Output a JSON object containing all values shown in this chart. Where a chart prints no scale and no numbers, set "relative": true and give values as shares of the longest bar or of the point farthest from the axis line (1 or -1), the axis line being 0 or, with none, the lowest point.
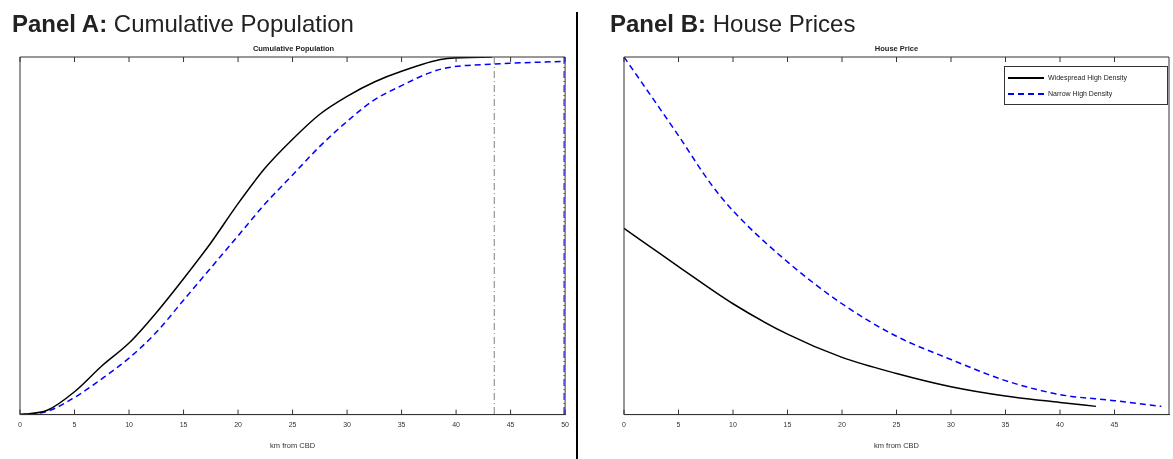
{
  "chart_data": [
    {
      "type": "line",
      "title": "Panel A: Cumulative Population",
      "subtitle": "Cumulative Population",
      "xlabel": "km from CBD",
      "relative": true,
      "xlim": [
        0,
        50
      ],
      "xticks": [
        0,
        5,
        10,
        15,
        20,
        25,
        30,
        35,
        40,
        45,
        50
      ],
      "tick_labels": "x",
      "grid": false,
      "legend": false,
      "marker": "none",
      "ref_lines": [
        {
          "axis": "x",
          "value": 43.5,
          "color": "#808080",
          "line_style": "dashed"
        },
        {
          "axis": "x",
          "value": 49.9,
          "color": "#0000ff",
          "line_style": "dashed"
        }
      ],
      "series": [
        {
          "color": "#000000",
          "line_style": "solid",
          "x": [
            0,
            2.5,
            5,
            7.5,
            10,
            12.5,
            15,
            17.5,
            20,
            22.5,
            25,
            27.5,
            30,
            32.5,
            35,
            39.2,
            43.3
          ],
          "values": [
            0,
            0.012,
            0.064,
            0.136,
            0.2,
            0.285,
            0.38,
            0.48,
            0.59,
            0.69,
            0.77,
            0.84,
            0.89,
            0.93,
            0.96,
            0.996,
            1
          ]
        },
        {
          "color": "#0000ff",
          "line_style": "dashed",
          "x": [
            0,
            2.5,
            5,
            7.5,
            10,
            12.5,
            15,
            17.5,
            20,
            22.5,
            25,
            27.5,
            30,
            32.5,
            35,
            37.5,
            39.2,
            43.3,
            50
          ],
          "values": [
            0,
            0.009,
            0.048,
            0.1,
            0.158,
            0.23,
            0.32,
            0.41,
            0.5,
            0.59,
            0.67,
            0.75,
            0.82,
            0.88,
            0.92,
            0.955,
            0.97,
            0.98,
            0.988
          ]
        }
      ]
    },
    {
      "type": "line",
      "title": "Panel B: House Prices",
      "subtitle": "House Price",
      "xlabel": "km from CBD",
      "relative": true,
      "xlim": [
        0,
        50
      ],
      "xticks": [
        0,
        5,
        10,
        15,
        20,
        25,
        30,
        35,
        40,
        45
      ],
      "tick_labels": "x",
      "grid": false,
      "legend": "top right",
      "marker": "none",
      "series": [
        {
          "name": "Widespread High Density",
          "color": "#000000",
          "line_style": "solid",
          "x": [
            0,
            5,
            10,
            15,
            20,
            25,
            30,
            35,
            40,
            43.3
          ],
          "values": [
            0.521,
            0.414,
            0.31,
            0.225,
            0.16,
            0.115,
            0.078,
            0.052,
            0.034,
            0.023
          ]
        },
        {
          "name": "Narrow High Density",
          "color": "#0000ff",
          "line_style": "dashed",
          "x": [
            0,
            5,
            7.9,
            10,
            15,
            20,
            25,
            30,
            35,
            40,
            45,
            49.3
          ],
          "values": [
            1,
            0.78,
            0.648,
            0.57,
            0.427,
            0.31,
            0.219,
            0.154,
            0.095,
            0.056,
            0.039,
            0.023
          ]
        }
      ]
    }
  ]
}
